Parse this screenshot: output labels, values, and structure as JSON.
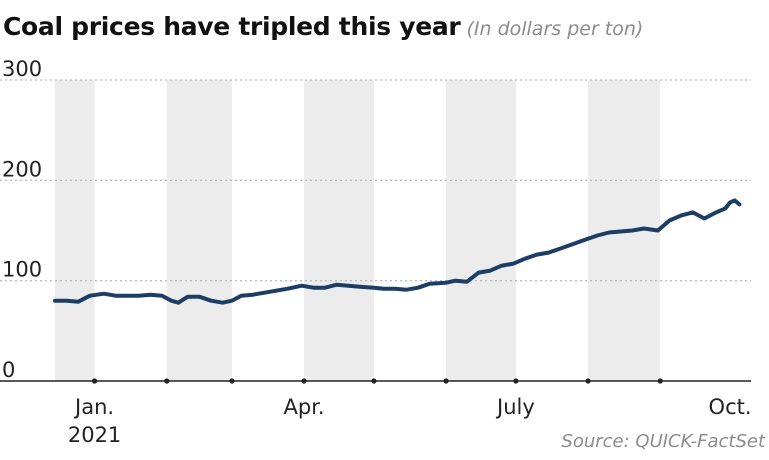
{
  "title": "Coal prices have tripled this year",
  "subtitle": "(In dollars per ton)",
  "source": "Source: QUICK-FactSet",
  "colors": {
    "line": "#1c3d66",
    "shade": "#ececec",
    "grid": "#bdbdbd",
    "axis": "#222222"
  },
  "chart_data": {
    "type": "line",
    "title": "Coal prices have tripled this year",
    "subtitle": "(In dollars per ton)",
    "ylim": [
      0,
      300
    ],
    "yticks": [
      "0",
      "100",
      "200",
      "300"
    ],
    "xlim": [
      "2020-12-15",
      "2021-10-10"
    ],
    "xticks": [
      {
        "date": "2021-01-01",
        "label": "Jan.",
        "label2": "2021"
      },
      {
        "date": "2021-04-01",
        "label": "Apr.",
        "label2": ""
      },
      {
        "date": "2021-07-01",
        "label": "July",
        "label2": ""
      },
      {
        "date": "2021-10-01",
        "label": "Oct.",
        "label2": ""
      }
    ],
    "shaded_months": [
      "2020-12",
      "2021-02",
      "2021-04",
      "2021-06",
      "2021-08"
    ],
    "grid": "horizontal-dotted",
    "series": [
      {
        "x": [
          "2020-12-15",
          "2020-12-20",
          "2020-12-25",
          "2020-12-30",
          "2021-01-05",
          "2021-01-10",
          "2021-01-15",
          "2021-01-20",
          "2021-01-25",
          "2021-01-30",
          "2021-02-03",
          "2021-02-06",
          "2021-02-10",
          "2021-02-15",
          "2021-02-20",
          "2021-02-25",
          "2021-03-01",
          "2021-03-05",
          "2021-03-10",
          "2021-03-15",
          "2021-03-20",
          "2021-03-25",
          "2021-03-31",
          "2021-04-05",
          "2021-04-10",
          "2021-04-15",
          "2021-04-20",
          "2021-04-25",
          "2021-05-01",
          "2021-05-05",
          "2021-05-10",
          "2021-05-15",
          "2021-05-20",
          "2021-05-25",
          "2021-06-01",
          "2021-06-05",
          "2021-06-10",
          "2021-06-15",
          "2021-06-20",
          "2021-06-25",
          "2021-06-30",
          "2021-07-05",
          "2021-07-10",
          "2021-07-15",
          "2021-07-20",
          "2021-07-25",
          "2021-07-31",
          "2021-08-05",
          "2021-08-10",
          "2021-08-15",
          "2021-08-20",
          "2021-08-25",
          "2021-08-31",
          "2021-09-05",
          "2021-09-10",
          "2021-09-15",
          "2021-09-20",
          "2021-09-25",
          "2021-09-29",
          "2021-10-01",
          "2021-10-03",
          "2021-10-05"
        ],
        "y": [
          80,
          80,
          79,
          85,
          87,
          85,
          85,
          85,
          86,
          85,
          80,
          78,
          84,
          84,
          80,
          78,
          80,
          85,
          86,
          88,
          90,
          92,
          95,
          93,
          93,
          96,
          95,
          94,
          93,
          92,
          92,
          91,
          93,
          97,
          98,
          100,
          99,
          108,
          110,
          115,
          117,
          122,
          126,
          128,
          132,
          136,
          141,
          145,
          148,
          149,
          150,
          152,
          150,
          160,
          165,
          168,
          162,
          168,
          172,
          178,
          180,
          176
        ]
      }
    ]
  }
}
